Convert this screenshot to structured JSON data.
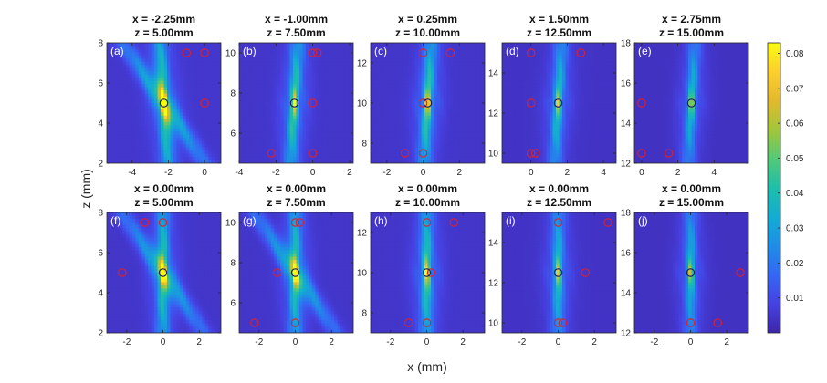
{
  "chart_data": {
    "type": "heatmap",
    "xlabel": "x (mm)",
    "ylabel": "z (mm)",
    "colormap": "parula",
    "colorbar": {
      "ticks": [
        "0.01",
        "0.02",
        "0.03",
        "0.04",
        "0.05",
        "0.06",
        "0.07",
        "0.08"
      ],
      "tick_values": [
        0.01,
        0.02,
        0.03,
        0.04,
        0.05,
        0.06,
        0.07,
        0.08
      ],
      "min": 0.0,
      "max": 0.083
    },
    "panels": [
      {
        "label": "(a)",
        "title1": "x = -2.25mm",
        "title2": "z = 5.00mm",
        "xlim": [
          -5.4,
          0.9
        ],
        "ylim": [
          2,
          8
        ],
        "xticks": [
          {
            "v": -4,
            "t": "-4"
          },
          {
            "v": -2,
            "t": "-2"
          },
          {
            "v": 0,
            "t": "0"
          }
        ],
        "yticks": [
          {
            "v": 2,
            "t": "2"
          },
          {
            "v": 4,
            "t": "4"
          },
          {
            "v": 6,
            "t": "6"
          },
          {
            "v": 8,
            "t": "8"
          }
        ],
        "focus": [
          -2.25,
          5.0
        ],
        "red_markers": [
          [
            -1.0,
            7.5
          ],
          [
            0.0,
            7.5
          ],
          [
            0.0,
            5.0
          ]
        ]
      },
      {
        "label": "(b)",
        "title1": "x = -1.00mm",
        "title2": "z = 7.50mm",
        "xlim": [
          -4.0,
          2.2
        ],
        "ylim": [
          4.5,
          10.5
        ],
        "xticks": [
          {
            "v": -4,
            "t": "-4"
          },
          {
            "v": -2,
            "t": "-2"
          },
          {
            "v": 0,
            "t": "0"
          },
          {
            "v": 2,
            "t": "2"
          }
        ],
        "yticks": [
          {
            "v": 6,
            "t": "6"
          },
          {
            "v": 8,
            "t": "8"
          },
          {
            "v": 10,
            "t": "10"
          }
        ],
        "focus": [
          -1.0,
          7.5
        ],
        "red_markers": [
          [
            0.0,
            10.0
          ],
          [
            0.25,
            10.0
          ],
          [
            0.0,
            7.5
          ],
          [
            -2.25,
            5.0
          ],
          [
            0.0,
            5.0
          ]
        ]
      },
      {
        "label": "(c)",
        "title1": "x = 0.25mm",
        "title2": "z = 10.00mm",
        "xlim": [
          -2.9,
          3.4
        ],
        "ylim": [
          7.0,
          13.0
        ],
        "xticks": [
          {
            "v": -2,
            "t": "-2"
          },
          {
            "v": 0,
            "t": "0"
          },
          {
            "v": 2,
            "t": "2"
          }
        ],
        "yticks": [
          {
            "v": 8,
            "t": "8"
          },
          {
            "v": 10,
            "t": "10"
          },
          {
            "v": 12,
            "t": "12"
          }
        ],
        "focus": [
          0.25,
          10.0
        ],
        "red_markers": [
          [
            0.0,
            12.5
          ],
          [
            1.5,
            12.5
          ],
          [
            0.0,
            10.0
          ],
          [
            -1.0,
            7.5
          ],
          [
            0.0,
            7.5
          ]
        ]
      },
      {
        "label": "(d)",
        "title1": "x = 1.50mm",
        "title2": "z = 12.50mm",
        "xlim": [
          -1.6,
          4.7
        ],
        "ylim": [
          9.5,
          15.5
        ],
        "xticks": [
          {
            "v": 0,
            "t": "0"
          },
          {
            "v": 2,
            "t": "2"
          },
          {
            "v": 4,
            "t": "4"
          }
        ],
        "yticks": [
          {
            "v": 10,
            "t": "10"
          },
          {
            "v": 12,
            "t": "12"
          },
          {
            "v": 14,
            "t": "14"
          }
        ],
        "focus": [
          1.5,
          12.5
        ],
        "red_markers": [
          [
            0.0,
            15.0
          ],
          [
            2.75,
            15.0
          ],
          [
            0.0,
            12.5
          ],
          [
            0.0,
            10.0
          ],
          [
            0.25,
            10.0
          ]
        ]
      },
      {
        "label": "(e)",
        "title1": "x = 2.75mm",
        "title2": "z = 15.00mm",
        "xlim": [
          -0.4,
          5.9
        ],
        "ylim": [
          12.0,
          18.0
        ],
        "xticks": [
          {
            "v": 0,
            "t": "0"
          },
          {
            "v": 2,
            "t": "2"
          },
          {
            "v": 4,
            "t": "4"
          }
        ],
        "yticks": [
          {
            "v": 12,
            "t": "12"
          },
          {
            "v": 14,
            "t": "14"
          },
          {
            "v": 16,
            "t": "16"
          },
          {
            "v": 18,
            "t": "18"
          }
        ],
        "focus": [
          2.75,
          15.0
        ],
        "red_markers": [
          [
            0.0,
            15.0
          ],
          [
            0.0,
            12.5
          ],
          [
            1.5,
            12.5
          ]
        ]
      },
      {
        "label": "(f)",
        "title1": "x = 0.00mm",
        "title2": "z = 5.00mm",
        "xlim": [
          -3.1,
          3.2
        ],
        "ylim": [
          2,
          8
        ],
        "xticks": [
          {
            "v": -2,
            "t": "-2"
          },
          {
            "v": 0,
            "t": "0"
          },
          {
            "v": 2,
            "t": "2"
          }
        ],
        "yticks": [
          {
            "v": 2,
            "t": "2"
          },
          {
            "v": 4,
            "t": "4"
          },
          {
            "v": 6,
            "t": "6"
          },
          {
            "v": 8,
            "t": "8"
          }
        ],
        "focus": [
          0.0,
          5.0
        ],
        "red_markers": [
          [
            -1.0,
            7.5
          ],
          [
            0.0,
            7.5
          ],
          [
            -2.25,
            5.0
          ]
        ]
      },
      {
        "label": "(g)",
        "title1": "x = 0.00mm",
        "title2": "z = 7.50mm",
        "xlim": [
          -3.1,
          3.2
        ],
        "ylim": [
          4.5,
          10.5
        ],
        "xticks": [
          {
            "v": -2,
            "t": "-2"
          },
          {
            "v": 0,
            "t": "0"
          },
          {
            "v": 2,
            "t": "2"
          }
        ],
        "yticks": [
          {
            "v": 6,
            "t": "6"
          },
          {
            "v": 8,
            "t": "8"
          },
          {
            "v": 10,
            "t": "10"
          }
        ],
        "focus": [
          0.0,
          7.5
        ],
        "red_markers": [
          [
            0.0,
            10.0
          ],
          [
            0.25,
            10.0
          ],
          [
            -1.0,
            7.5
          ],
          [
            -2.25,
            5.0
          ],
          [
            0.0,
            5.0
          ]
        ]
      },
      {
        "label": "(h)",
        "title1": "x = 0.00mm",
        "title2": "z = 10.00mm",
        "xlim": [
          -3.1,
          3.2
        ],
        "ylim": [
          7.0,
          13.0
        ],
        "xticks": [
          {
            "v": -2,
            "t": "-2"
          },
          {
            "v": 0,
            "t": "0"
          },
          {
            "v": 2,
            "t": "2"
          }
        ],
        "yticks": [
          {
            "v": 8,
            "t": "8"
          },
          {
            "v": 10,
            "t": "10"
          },
          {
            "v": 12,
            "t": "12"
          }
        ],
        "focus": [
          0.0,
          10.0
        ],
        "red_markers": [
          [
            0.0,
            12.5
          ],
          [
            1.5,
            12.5
          ],
          [
            0.25,
            10.0
          ],
          [
            -1.0,
            7.5
          ],
          [
            0.0,
            7.5
          ]
        ]
      },
      {
        "label": "(i)",
        "title1": "x = 0.00mm",
        "title2": "z = 12.50mm",
        "xlim": [
          -3.1,
          3.2
        ],
        "ylim": [
          9.5,
          15.5
        ],
        "xticks": [
          {
            "v": -2,
            "t": "-2"
          },
          {
            "v": 0,
            "t": "0"
          },
          {
            "v": 2,
            "t": "2"
          }
        ],
        "yticks": [
          {
            "v": 10,
            "t": "10"
          },
          {
            "v": 12,
            "t": "12"
          },
          {
            "v": 14,
            "t": "14"
          }
        ],
        "focus": [
          0.0,
          12.5
        ],
        "red_markers": [
          [
            0.0,
            15.0
          ],
          [
            2.75,
            15.0
          ],
          [
            1.5,
            12.5
          ],
          [
            0.0,
            10.0
          ],
          [
            0.25,
            10.0
          ]
        ]
      },
      {
        "label": "(j)",
        "title1": "x = 0.00mm",
        "title2": "z = 15.00mm",
        "xlim": [
          -3.1,
          3.2
        ],
        "ylim": [
          12.0,
          18.0
        ],
        "xticks": [
          {
            "v": -2,
            "t": "-2"
          },
          {
            "v": 0,
            "t": "0"
          },
          {
            "v": 2,
            "t": "2"
          }
        ],
        "yticks": [
          {
            "v": 12,
            "t": "12"
          },
          {
            "v": 14,
            "t": "14"
          },
          {
            "v": 16,
            "t": "16"
          },
          {
            "v": 18,
            "t": "18"
          }
        ],
        "focus": [
          0.0,
          15.0
        ],
        "red_markers": [
          [
            2.75,
            15.0
          ],
          [
            0.0,
            12.5
          ],
          [
            1.5,
            12.5
          ]
        ]
      }
    ]
  }
}
